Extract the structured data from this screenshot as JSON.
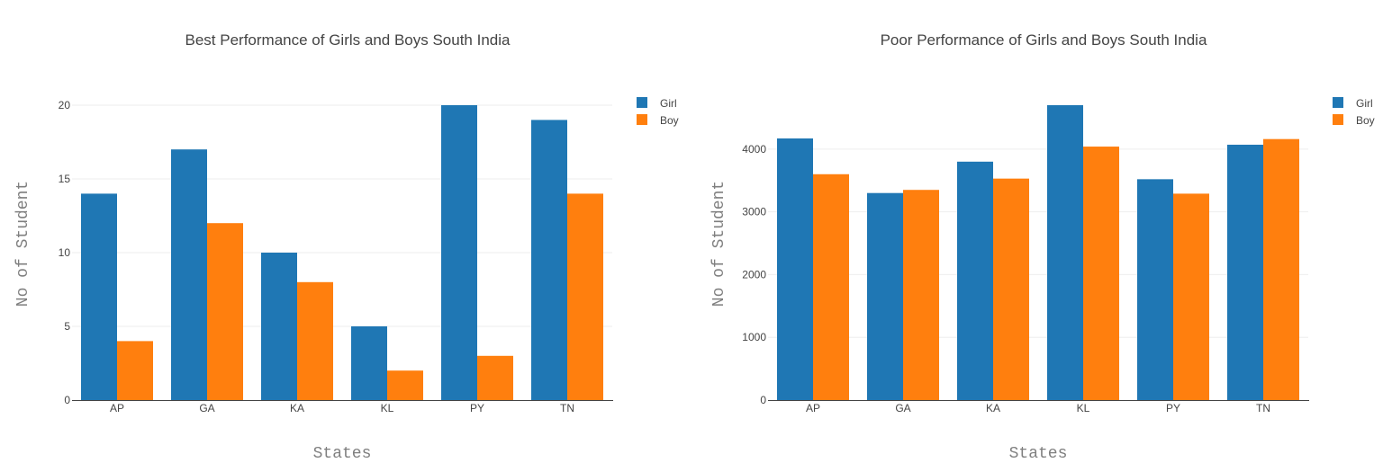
{
  "chart_data": [
    {
      "type": "bar",
      "title": "Best Performance of Girls and Boys South India",
      "xlabel": "States",
      "ylabel": "No of Student",
      "categories": [
        "AP",
        "GA",
        "KA",
        "KL",
        "PY",
        "TN"
      ],
      "series": [
        {
          "name": "Girl",
          "color": "#1f77b4",
          "values": [
            14,
            17,
            10,
            5,
            20,
            19
          ]
        },
        {
          "name": "Boy",
          "color": "#ff7f0e",
          "values": [
            4,
            12,
            8,
            2,
            3,
            14
          ]
        }
      ],
      "ylim": [
        0,
        20
      ],
      "yticks": [
        0,
        5,
        10,
        15,
        20
      ],
      "grid": true,
      "legend": "top-right"
    },
    {
      "type": "bar",
      "title": "Poor Performance of Girls and Boys South India",
      "xlabel": "States",
      "ylabel": "No of Student",
      "categories": [
        "AP",
        "GA",
        "KA",
        "KL",
        "PY",
        "TN"
      ],
      "series": [
        {
          "name": "Girl",
          "color": "#1f77b4",
          "values": [
            4170,
            3300,
            3800,
            4700,
            3520,
            4070
          ]
        },
        {
          "name": "Boy",
          "color": "#ff7f0e",
          "values": [
            3600,
            3350,
            3530,
            4040,
            3290,
            4160
          ]
        }
      ],
      "ylim": [
        0,
        4700
      ],
      "yticks": [
        0,
        1000,
        2000,
        3000,
        4000
      ],
      "grid": true,
      "legend": "top-right"
    }
  ]
}
